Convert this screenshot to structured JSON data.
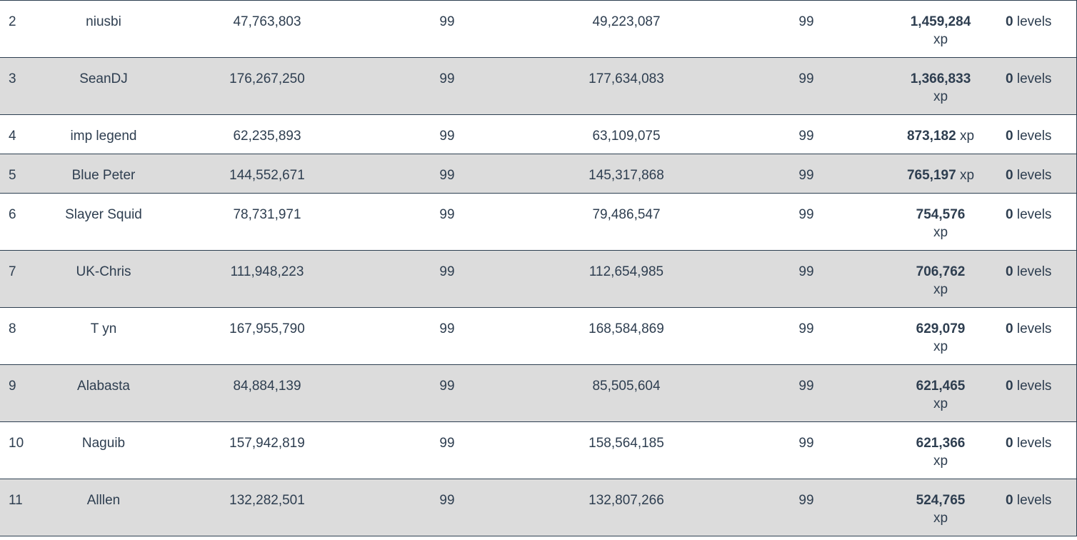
{
  "units": {
    "xp": "xp",
    "levels": "levels"
  },
  "table": {
    "rows": [
      [
        "2",
        "niusbi",
        "47,763,803",
        "99",
        "49,223,087",
        "99",
        "1,459,284",
        "0"
      ],
      [
        "3",
        "SeanDJ",
        "176,267,250",
        "99",
        "177,634,083",
        "99",
        "1,366,833",
        "0"
      ],
      [
        "4",
        "imp legend",
        "62,235,893",
        "99",
        "63,109,075",
        "99",
        "873,182",
        "0"
      ],
      [
        "5",
        "Blue Peter",
        "144,552,671",
        "99",
        "145,317,868",
        "99",
        "765,197",
        "0"
      ],
      [
        "6",
        "Slayer Squid",
        "78,731,971",
        "99",
        "79,486,547",
        "99",
        "754,576",
        "0"
      ],
      [
        "7",
        "UK-Chris",
        "111,948,223",
        "99",
        "112,654,985",
        "99",
        "706,762",
        "0"
      ],
      [
        "8",
        "T yn",
        "167,955,790",
        "99",
        "168,584,869",
        "99",
        "629,079",
        "0"
      ],
      [
        "9",
        "Alabasta",
        "84,884,139",
        "99",
        "85,505,604",
        "99",
        "621,465",
        "0"
      ],
      [
        "10",
        "Naguib",
        "157,942,819",
        "99",
        "158,564,185",
        "99",
        "621,366",
        "0"
      ],
      [
        "11",
        "Alllen",
        "132,282,501",
        "99",
        "132,807,266",
        "99",
        "524,765",
        "0"
      ]
    ]
  }
}
